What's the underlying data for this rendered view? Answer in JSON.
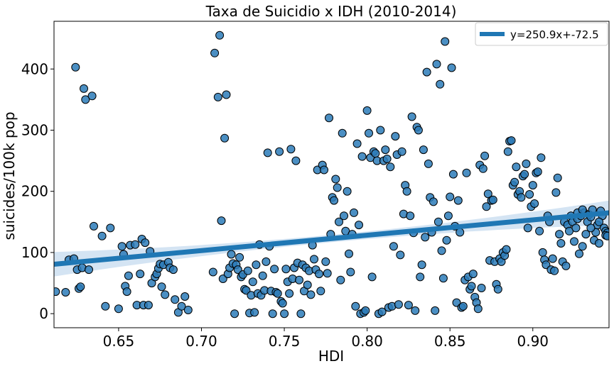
{
  "chart_data": {
    "type": "scatter",
    "title": "Taxa de Suicidio x IDH (2010-2014)",
    "xlabel": "HDI",
    "ylabel": "suicides/100k pop",
    "xlim": [
      0.611,
      0.946
    ],
    "ylim": [
      -23,
      478
    ],
    "x_ticks": [
      0.65,
      0.7,
      0.75,
      0.8,
      0.85,
      0.9
    ],
    "x_tick_labels": [
      "0.65",
      "0.70",
      "0.75",
      "0.80",
      "0.85",
      "0.90"
    ],
    "y_ticks": [
      0,
      100,
      200,
      300,
      400
    ],
    "y_tick_labels": [
      "0",
      "100",
      "200",
      "300",
      "400"
    ],
    "legend": {
      "label": "y=250.9x+-72.5",
      "position": "top-right"
    },
    "regression": {
      "slope": 250.9,
      "intercept": -72.5,
      "ci_halfwidth_ends": 20,
      "ci_halfwidth_mid": 6
    },
    "colors": {
      "marker_fill": "#2b7bb9",
      "marker_edge": "#000000",
      "line": "#1f77b4",
      "ci_band": "#c6dbef"
    },
    "points": [
      [
        0.612,
        36
      ],
      [
        0.618,
        35
      ],
      [
        0.62,
        88
      ],
      [
        0.623,
        90
      ],
      [
        0.624,
        403
      ],
      [
        0.625,
        72
      ],
      [
        0.626,
        41
      ],
      [
        0.627,
        44
      ],
      [
        0.628,
        75
      ],
      [
        0.629,
        368
      ],
      [
        0.63,
        350
      ],
      [
        0.632,
        72
      ],
      [
        0.634,
        356
      ],
      [
        0.635,
        143
      ],
      [
        0.64,
        127
      ],
      [
        0.642,
        12
      ],
      [
        0.645,
        140
      ],
      [
        0.65,
        8
      ],
      [
        0.652,
        110
      ],
      [
        0.653,
        97
      ],
      [
        0.654,
        45
      ],
      [
        0.655,
        36
      ],
      [
        0.656,
        62
      ],
      [
        0.657,
        112
      ],
      [
        0.66,
        113
      ],
      [
        0.661,
        14
      ],
      [
        0.663,
        65
      ],
      [
        0.664,
        122
      ],
      [
        0.665,
        14
      ],
      [
        0.666,
        116
      ],
      [
        0.668,
        14
      ],
      [
        0.669,
        102
      ],
      [
        0.67,
        50
      ],
      [
        0.672,
        60
      ],
      [
        0.673,
        65
      ],
      [
        0.674,
        74
      ],
      [
        0.675,
        81
      ],
      [
        0.676,
        44
      ],
      [
        0.677,
        80
      ],
      [
        0.678,
        31
      ],
      [
        0.68,
        84
      ],
      [
        0.681,
        75
      ],
      [
        0.683,
        72
      ],
      [
        0.684,
        23
      ],
      [
        0.686,
        2
      ],
      [
        0.688,
        12
      ],
      [
        0.69,
        28
      ],
      [
        0.692,
        6
      ],
      [
        0.707,
        68
      ],
      [
        0.708,
        426
      ],
      [
        0.71,
        354
      ],
      [
        0.711,
        455
      ],
      [
        0.712,
        152
      ],
      [
        0.713,
        57
      ],
      [
        0.714,
        287
      ],
      [
        0.715,
        358
      ],
      [
        0.716,
        65
      ],
      [
        0.717,
        75
      ],
      [
        0.718,
        97
      ],
      [
        0.719,
        82
      ],
      [
        0.72,
        0
      ],
      [
        0.721,
        80
      ],
      [
        0.722,
        72
      ],
      [
        0.723,
        92
      ],
      [
        0.724,
        60
      ],
      [
        0.725,
        64
      ],
      [
        0.726,
        40
      ],
      [
        0.727,
        38
      ],
      [
        0.728,
        70
      ],
      [
        0.729,
        1
      ],
      [
        0.73,
        30
      ],
      [
        0.731,
        52
      ],
      [
        0.732,
        2
      ],
      [
        0.733,
        80
      ],
      [
        0.734,
        33
      ],
      [
        0.735,
        113
      ],
      [
        0.736,
        30
      ],
      [
        0.737,
        62
      ],
      [
        0.738,
        38
      ],
      [
        0.739,
        85
      ],
      [
        0.74,
        263
      ],
      [
        0.741,
        110
      ],
      [
        0.742,
        37
      ],
      [
        0.743,
        0
      ],
      [
        0.744,
        73
      ],
      [
        0.745,
        35
      ],
      [
        0.746,
        33
      ],
      [
        0.747,
        265
      ],
      [
        0.748,
        20
      ],
      [
        0.749,
        17
      ],
      [
        0.75,
        0
      ],
      [
        0.751,
        73
      ],
      [
        0.752,
        52
      ],
      [
        0.753,
        33
      ],
      [
        0.754,
        269
      ],
      [
        0.755,
        57
      ],
      [
        0.756,
        75
      ],
      [
        0.757,
        250
      ],
      [
        0.758,
        83
      ],
      [
        0.759,
        55
      ],
      [
        0.76,
        0
      ],
      [
        0.761,
        80
      ],
      [
        0.762,
        37
      ],
      [
        0.763,
        75
      ],
      [
        0.764,
        47
      ],
      [
        0.765,
        70
      ],
      [
        0.766,
        31
      ],
      [
        0.767,
        112
      ],
      [
        0.768,
        89
      ],
      [
        0.769,
        72
      ],
      [
        0.77,
        235
      ],
      [
        0.771,
        65
      ],
      [
        0.772,
        37
      ],
      [
        0.773,
        243
      ],
      [
        0.774,
        235
      ],
      [
        0.775,
        85
      ],
      [
        0.776,
        66
      ],
      [
        0.777,
        320
      ],
      [
        0.778,
        130
      ],
      [
        0.779,
        190
      ],
      [
        0.78,
        185
      ],
      [
        0.781,
        220
      ],
      [
        0.782,
        206
      ],
      [
        0.783,
        150
      ],
      [
        0.784,
        55
      ],
      [
        0.785,
        295
      ],
      [
        0.786,
        160
      ],
      [
        0.787,
        135
      ],
      [
        0.788,
        200
      ],
      [
        0.789,
        98
      ],
      [
        0.79,
        68
      ],
      [
        0.791,
        130
      ],
      [
        0.792,
        165
      ],
      [
        0.793,
        12
      ],
      [
        0.794,
        278
      ],
      [
        0.795,
        145
      ],
      [
        0.796,
        0
      ],
      [
        0.797,
        257
      ],
      [
        0.798,
        2
      ],
      [
        0.799,
        5
      ],
      [
        0.8,
        332
      ],
      [
        0.801,
        295
      ],
      [
        0.802,
        255
      ],
      [
        0.803,
        60
      ],
      [
        0.804,
        265
      ],
      [
        0.805,
        262
      ],
      [
        0.806,
        250
      ],
      [
        0.807,
        0
      ],
      [
        0.808,
        300
      ],
      [
        0.809,
        3
      ],
      [
        0.81,
        250
      ],
      [
        0.811,
        268
      ],
      [
        0.812,
        253
      ],
      [
        0.813,
        10
      ],
      [
        0.814,
        240
      ],
      [
        0.815,
        12
      ],
      [
        0.816,
        110
      ],
      [
        0.817,
        290
      ],
      [
        0.818,
        260
      ],
      [
        0.819,
        15
      ],
      [
        0.82,
        96
      ],
      [
        0.821,
        265
      ],
      [
        0.822,
        163
      ],
      [
        0.823,
        210
      ],
      [
        0.824,
        200
      ],
      [
        0.825,
        14
      ],
      [
        0.826,
        160
      ],
      [
        0.827,
        322
      ],
      [
        0.828,
        132
      ],
      [
        0.829,
        5
      ],
      [
        0.83,
        305
      ],
      [
        0.831,
        300
      ],
      [
        0.832,
        60
      ],
      [
        0.833,
        80
      ],
      [
        0.834,
        268
      ],
      [
        0.835,
        125
      ],
      [
        0.836,
        395
      ],
      [
        0.837,
        245
      ],
      [
        0.838,
        190
      ],
      [
        0.839,
        133
      ],
      [
        0.84,
        183
      ],
      [
        0.841,
        5
      ],
      [
        0.842,
        408
      ],
      [
        0.843,
        150
      ],
      [
        0.844,
        375
      ],
      [
        0.845,
        103
      ],
      [
        0.846,
        58
      ],
      [
        0.847,
        445
      ],
      [
        0.848,
        120
      ],
      [
        0.849,
        160
      ],
      [
        0.85,
        191
      ],
      [
        0.851,
        402
      ],
      [
        0.852,
        228
      ],
      [
        0.853,
        143
      ],
      [
        0.854,
        18
      ],
      [
        0.855,
        185
      ],
      [
        0.856,
        133
      ],
      [
        0.857,
        10
      ],
      [
        0.858,
        12
      ],
      [
        0.859,
        55
      ],
      [
        0.86,
        230
      ],
      [
        0.861,
        60
      ],
      [
        0.862,
        40
      ],
      [
        0.863,
        45
      ],
      [
        0.864,
        65
      ],
      [
        0.865,
        27
      ],
      [
        0.866,
        18
      ],
      [
        0.867,
        8
      ],
      [
        0.868,
        243
      ],
      [
        0.869,
        42
      ],
      [
        0.87,
        237
      ],
      [
        0.871,
        258
      ],
      [
        0.872,
        175
      ],
      [
        0.873,
        196
      ],
      [
        0.874,
        87
      ],
      [
        0.875,
        185
      ],
      [
        0.876,
        186
      ],
      [
        0.877,
        85
      ],
      [
        0.878,
        48
      ],
      [
        0.879,
        40
      ],
      [
        0.88,
        90
      ],
      [
        0.881,
        85
      ],
      [
        0.882,
        100
      ],
      [
        0.883,
        95
      ],
      [
        0.884,
        105
      ],
      [
        0.885,
        265
      ],
      [
        0.886,
        282
      ],
      [
        0.887,
        283
      ],
      [
        0.888,
        210
      ],
      [
        0.889,
        215
      ],
      [
        0.89,
        240
      ],
      [
        0.891,
        195
      ],
      [
        0.892,
        200
      ],
      [
        0.893,
        190
      ],
      [
        0.894,
        225
      ],
      [
        0.895,
        228
      ],
      [
        0.896,
        245
      ],
      [
        0.897,
        140
      ],
      [
        0.898,
        195
      ],
      [
        0.899,
        175
      ],
      [
        0.9,
        210
      ],
      [
        0.901,
        180
      ],
      [
        0.902,
        230
      ],
      [
        0.903,
        232
      ],
      [
        0.904,
        135
      ],
      [
        0.905,
        255
      ],
      [
        0.906,
        100
      ],
      [
        0.907,
        88
      ],
      [
        0.908,
        80
      ],
      [
        0.909,
        160
      ],
      [
        0.91,
        150
      ],
      [
        0.911,
        72
      ],
      [
        0.912,
        90
      ],
      [
        0.913,
        70
      ],
      [
        0.914,
        198
      ],
      [
        0.915,
        222
      ],
      [
        0.916,
        130
      ],
      [
        0.917,
        115
      ],
      [
        0.918,
        85
      ],
      [
        0.919,
        150
      ],
      [
        0.92,
        78
      ],
      [
        0.921,
        145
      ],
      [
        0.922,
        135
      ],
      [
        0.923,
        160
      ],
      [
        0.924,
        150
      ],
      [
        0.925,
        118
      ],
      [
        0.926,
        140
      ],
      [
        0.927,
        155
      ],
      [
        0.928,
        98
      ],
      [
        0.929,
        160
      ],
      [
        0.93,
        110
      ],
      [
        0.931,
        165
      ],
      [
        0.932,
        130
      ],
      [
        0.933,
        150
      ],
      [
        0.934,
        162
      ],
      [
        0.935,
        158
      ],
      [
        0.936,
        170
      ],
      [
        0.937,
        120
      ],
      [
        0.938,
        133
      ],
      [
        0.939,
        145
      ],
      [
        0.94,
        115
      ],
      [
        0.941,
        168
      ],
      [
        0.942,
        160
      ],
      [
        0.943,
        140
      ],
      [
        0.944,
        135
      ],
      [
        0.945,
        132
      ],
      [
        0.927,
        165
      ],
      [
        0.93,
        170
      ],
      [
        0.935,
        140
      ],
      [
        0.94,
        150
      ],
      [
        0.944,
        128
      ],
      [
        0.945,
        127
      ]
    ]
  }
}
